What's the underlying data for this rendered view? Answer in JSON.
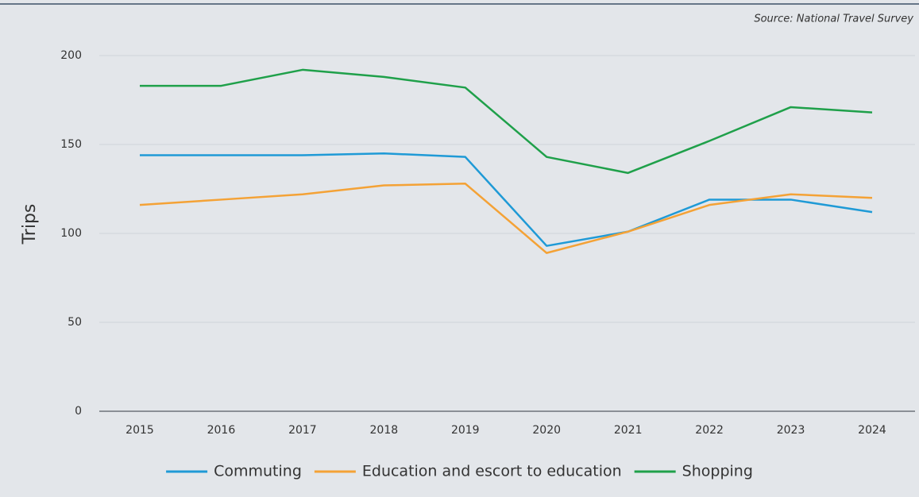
{
  "chart_data": {
    "type": "line",
    "source": "Source: National Travel Survey",
    "y_label": "Trips",
    "x": [
      2015,
      2016,
      2017,
      2018,
      2019,
      2020,
      2021,
      2022,
      2023,
      2024
    ],
    "series": [
      {
        "name": "Commuting",
        "color": "#1f9ad6",
        "values": [
          144,
          144,
          144,
          145,
          143,
          93,
          101,
          119,
          119,
          112
        ]
      },
      {
        "name": "Education and escort to education",
        "color": "#f4a236",
        "values": [
          116,
          119,
          122,
          127,
          128,
          89,
          101,
          116,
          122,
          120
        ]
      },
      {
        "name": "Shopping",
        "color": "#1fa04a",
        "values": [
          183,
          183,
          192,
          188,
          182,
          143,
          134,
          152,
          171,
          168
        ]
      }
    ],
    "ylim": [
      0,
      200
    ],
    "yticks": [
      0,
      50,
      100,
      150,
      200
    ],
    "grid": true,
    "legend": "bottom"
  }
}
